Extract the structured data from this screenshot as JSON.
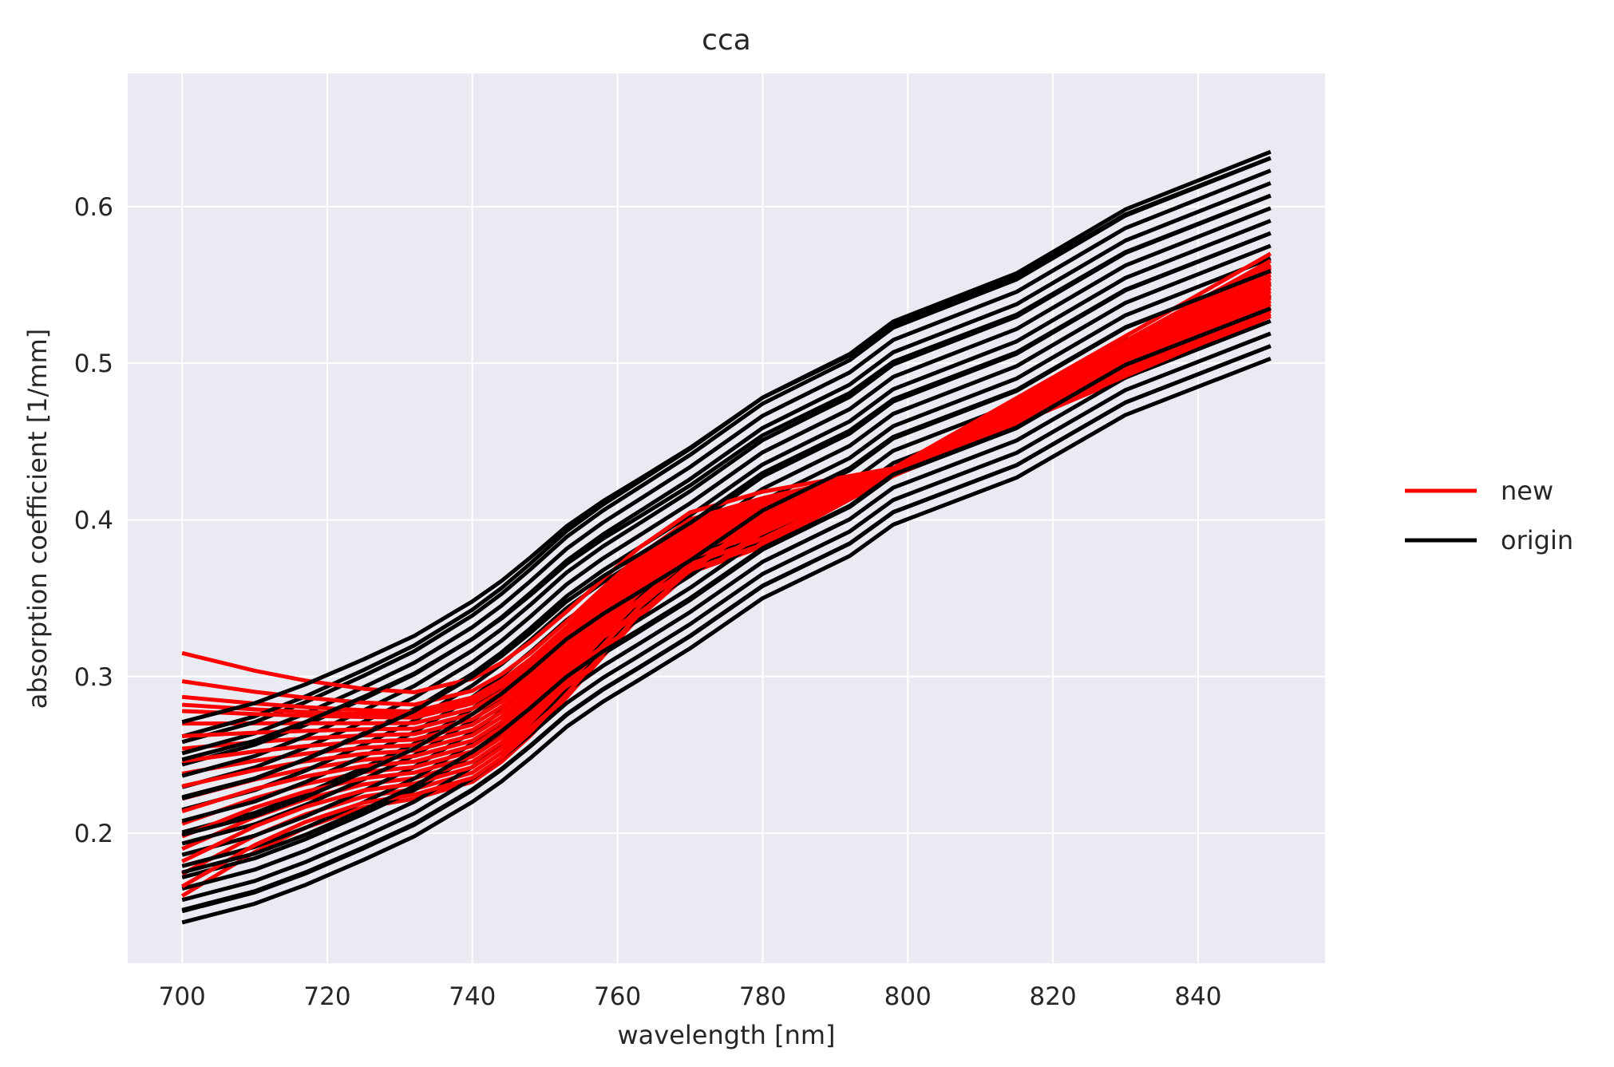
{
  "chart_data": {
    "type": "line",
    "title": "cca",
    "xlabel": "wavelength [nm]",
    "ylabel": "absorption coefficient [1/mm]",
    "xlim": [
      692.5,
      857.5
    ],
    "ylim": [
      0.117,
      0.685
    ],
    "xticks": [
      700,
      720,
      740,
      760,
      780,
      800,
      820,
      840
    ],
    "yticks": [
      0.2,
      0.3,
      0.4,
      0.5,
      0.6
    ],
    "ytick_labels": [
      "0.2",
      "0.3",
      "0.4",
      "0.5",
      "0.6"
    ],
    "grid": true,
    "background": "#EAEAF2",
    "grid_color": "#FFFFFF",
    "x": [
      700,
      710,
      717,
      725,
      732,
      740,
      744,
      748,
      753,
      758,
      763,
      770,
      780,
      792,
      798,
      815,
      830,
      850
    ],
    "series_groups": [
      {
        "name": "new",
        "color": "#FF0000",
        "profiles": [
          {
            "base": 0.315,
            "delta": 0
          },
          {
            "base": 0.31,
            "delta": 0
          },
          {
            "base": 0.297,
            "delta": 0
          },
          {
            "base": 0.292,
            "delta": 0
          },
          {
            "base": 0.287,
            "delta": 0
          },
          {
            "base": 0.282,
            "delta": 0
          },
          {
            "base": 0.278,
            "delta": 0
          },
          {
            "base": 0.27,
            "delta": 0
          },
          {
            "base": 0.262,
            "delta": 0
          },
          {
            "base": 0.254,
            "delta": 0
          },
          {
            "base": 0.246,
            "delta": 0
          },
          {
            "base": 0.238,
            "delta": 0
          },
          {
            "base": 0.23,
            "delta": 0
          },
          {
            "base": 0.222,
            "delta": 0
          },
          {
            "base": 0.214,
            "delta": 0
          },
          {
            "base": 0.206,
            "delta": 0
          },
          {
            "base": 0.198,
            "delta": 0
          },
          {
            "base": 0.19,
            "delta": 0
          },
          {
            "base": 0.182,
            "delta": 0
          },
          {
            "base": 0.174,
            "delta": 0
          },
          {
            "base": 0.166,
            "delta": 0
          },
          {
            "base": 0.16,
            "delta": 0
          }
        ]
      },
      {
        "name": "origin",
        "color": "#000000",
        "profiles": [
          {
            "offset": 0.0
          },
          {
            "offset": 0.008
          },
          {
            "offset": 0.016
          },
          {
            "offset": 0.024
          },
          {
            "offset": 0.032
          },
          {
            "offset": 0.04
          },
          {
            "offset": 0.048
          },
          {
            "offset": 0.056
          },
          {
            "offset": 0.064
          },
          {
            "offset": 0.072
          },
          {
            "offset": 0.08
          },
          {
            "offset": 0.088
          },
          {
            "offset": 0.096
          },
          {
            "offset": 0.104
          },
          {
            "offset": 0.112
          },
          {
            "offset": 0.12
          },
          {
            "offset": 0.128
          },
          {
            "offset": 0.132
          }
        ]
      }
    ],
    "origin_base": [
      0.143,
      0.155,
      0.167,
      0.183,
      0.198,
      0.22,
      0.233,
      0.248,
      0.268,
      0.284,
      0.298,
      0.318,
      0.35,
      0.377,
      0.397,
      0.427,
      0.467,
      0.503
    ],
    "legend": {
      "position": "right",
      "entries": [
        {
          "label": "new",
          "color": "#FF0000"
        },
        {
          "label": "origin",
          "color": "#000000"
        }
      ]
    }
  }
}
